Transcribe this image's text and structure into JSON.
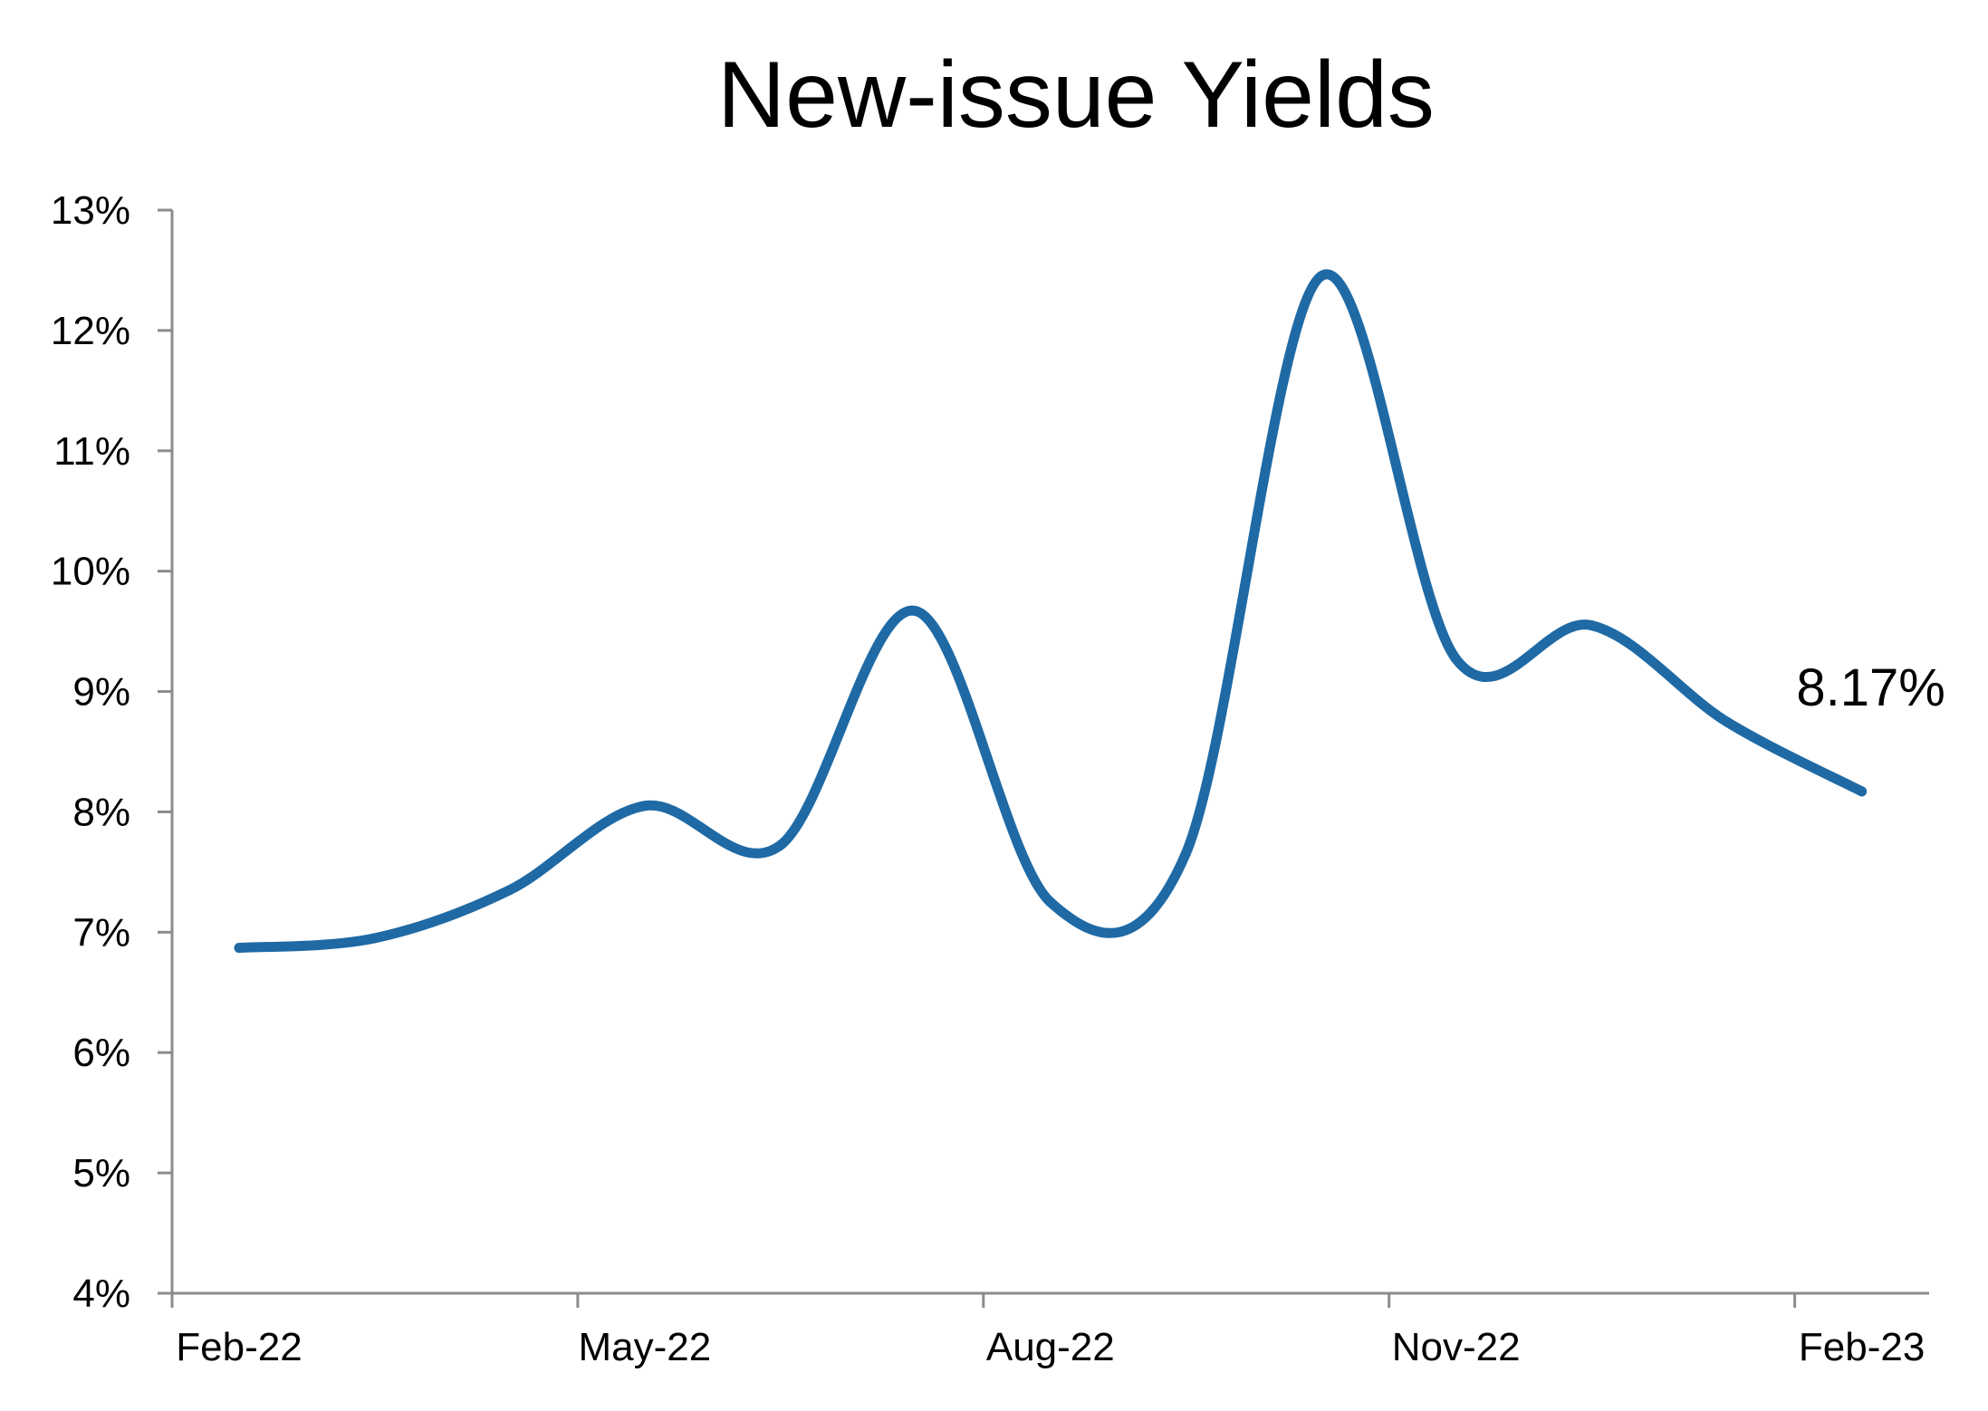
{
  "chart_data": {
    "type": "line",
    "title": "New-issue Yields",
    "xlabel": "",
    "ylabel": "",
    "y_tick_labels": [
      "4%",
      "5%",
      "6%",
      "7%",
      "8%",
      "9%",
      "10%",
      "11%",
      "12%",
      "13%"
    ],
    "x_tick_labels": [
      "Feb-22",
      "May-22",
      "Aug-22",
      "Nov-22",
      "Feb-23"
    ],
    "ylim": [
      4,
      13
    ],
    "xlim": [
      "2022-02",
      "2023-02"
    ],
    "grid": false,
    "legend": "none",
    "colors": {
      "series": "#1f6aa5",
      "axis": "#8c8c8c",
      "text": "#000000"
    },
    "series": [
      {
        "x": [
          "2022-02",
          "2022-03",
          "2022-04",
          "2022-05",
          "2022-06",
          "2022-07",
          "2022-08",
          "2022-09",
          "2022-10",
          "2022-11",
          "2022-12",
          "2023-01",
          "2023-02"
        ],
        "values": [
          6.87,
          6.95,
          7.35,
          8.05,
          7.72,
          9.67,
          7.25,
          7.65,
          12.45,
          9.27,
          9.55,
          8.75,
          8.17
        ]
      }
    ],
    "end_label": "8.17%"
  }
}
